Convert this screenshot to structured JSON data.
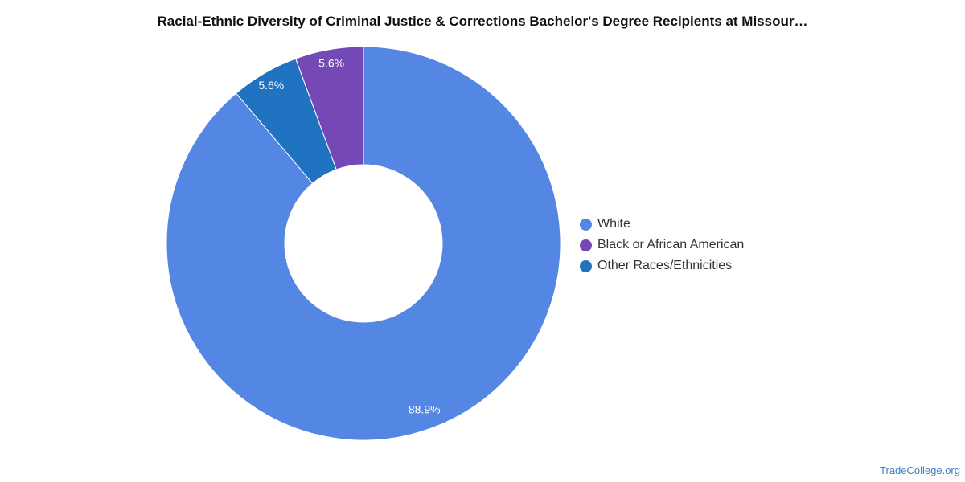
{
  "chart_data": {
    "type": "pie",
    "title": "Racial-Ethnic Diversity of Criminal Justice & Corrections Bachelor's Degree Recipients at Missour…",
    "slices": [
      {
        "label": "White",
        "value": 88.9,
        "display": "88.9%",
        "color": "#5486e3"
      },
      {
        "label": "Black or African American",
        "value": 5.6,
        "display": "5.6%",
        "color": "#7549b5"
      },
      {
        "label": "Other Races/Ethnicities",
        "value": 5.6,
        "display": "5.6%",
        "color": "#1f73c1"
      }
    ],
    "donut": true,
    "legend_position": "right"
  },
  "footer": {
    "source": "TradeCollege.org"
  }
}
